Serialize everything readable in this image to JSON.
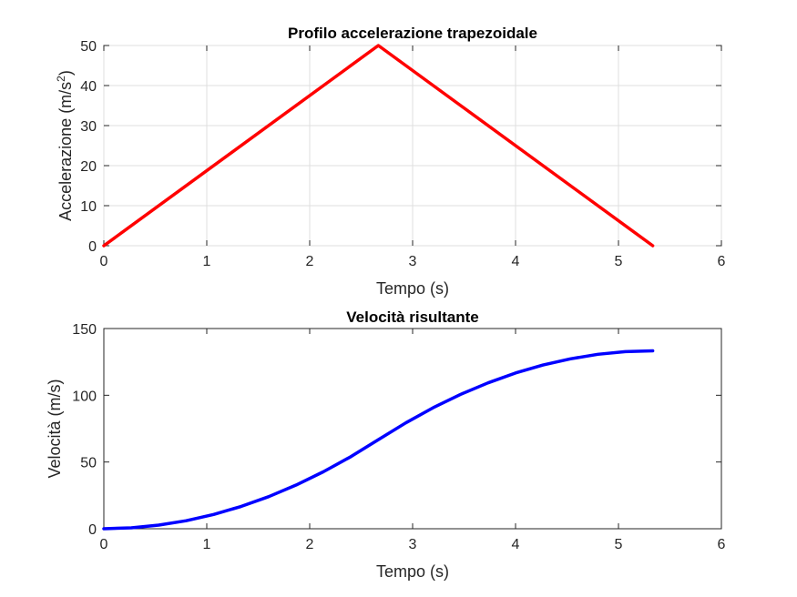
{
  "chart_data": [
    {
      "type": "line",
      "title": "Profilo accelerazione trapezoidale",
      "xlabel": "Tempo (s)",
      "ylabel": "Accelerazione (m/s",
      "ylabel_sup": "2",
      "ylabel_end": ")",
      "xlim": [
        0,
        6
      ],
      "ylim": [
        0,
        50
      ],
      "xticks": [
        "0",
        "1",
        "2",
        "3",
        "4",
        "5",
        "6"
      ],
      "yticks": [
        "0",
        "10",
        "20",
        "30",
        "40",
        "50"
      ],
      "grid": true,
      "line_color": "#ff0000",
      "series": [
        {
          "x": [
            0,
            2.667,
            5.333
          ],
          "y": [
            0,
            50,
            0
          ]
        }
      ]
    },
    {
      "type": "line",
      "title": "Velocità risultante",
      "xlabel": "Tempo (s)",
      "ylabel": "Velocità (m/s)",
      "xlim": [
        0,
        6
      ],
      "ylim": [
        0,
        150
      ],
      "xticks": [
        "0",
        "1",
        "2",
        "3",
        "4",
        "5",
        "6"
      ],
      "yticks": [
        "0",
        "50",
        "100",
        "150"
      ],
      "grid": false,
      "line_color": "#0000ff",
      "series": [
        {
          "x": [
            0,
            0.267,
            0.533,
            0.8,
            1.067,
            1.333,
            1.6,
            1.867,
            2.133,
            2.4,
            2.667,
            2.933,
            3.2,
            3.467,
            3.733,
            4.0,
            4.267,
            4.533,
            4.8,
            5.067,
            5.333
          ],
          "y": [
            0,
            0.7,
            2.7,
            6.0,
            10.7,
            16.7,
            24.0,
            32.7,
            42.7,
            54.0,
            66.7,
            79.3,
            90.7,
            100.7,
            109.3,
            116.7,
            122.7,
            127.3,
            130.7,
            132.7,
            133.3
          ]
        }
      ]
    }
  ]
}
